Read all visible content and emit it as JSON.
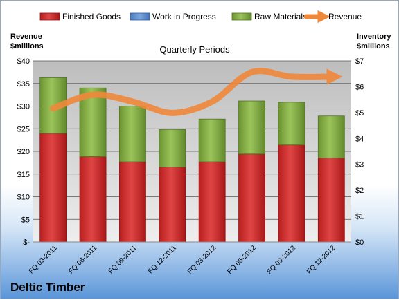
{
  "chart_data": {
    "type": "bar",
    "title": "Quarterly Periods",
    "categories": [
      "FQ 03-2011",
      "FQ 06-2011",
      "FQ 09-2011",
      "FQ 12-2011",
      "FQ 03-2012",
      "FQ 06-2012",
      "FQ 09-2012",
      "FQ 12-2012"
    ],
    "series": [
      {
        "name": "Finished Goods",
        "axis": "inventory",
        "kind": "stacked-bar",
        "color": "#d03030",
        "values": [
          4.2,
          3.3,
          3.1,
          2.9,
          3.1,
          3.4,
          3.75,
          3.25
        ]
      },
      {
        "name": "Work in Progress",
        "axis": "inventory",
        "kind": "stacked-bar",
        "color": "#5b8fd4",
        "values": [
          0,
          0,
          0,
          0,
          0,
          0,
          0,
          0
        ]
      },
      {
        "name": "Raw Materials",
        "axis": "inventory",
        "kind": "stacked-bar",
        "color": "#8ab34a",
        "values": [
          2.15,
          2.65,
          2.15,
          1.45,
          1.65,
          2.05,
          1.65,
          1.62
        ]
      },
      {
        "name": "Revenue",
        "axis": "revenue",
        "kind": "line",
        "color": "#f0883a",
        "values": [
          29.5,
          32.5,
          31,
          28.5,
          31,
          37.5,
          36.5,
          36.5
        ]
      }
    ],
    "y_left": {
      "label": "Revenue\n$millions",
      "ylim": [
        0,
        40
      ],
      "ticks": [
        "$-",
        "$5",
        "$10",
        "$15",
        "$20",
        "$25",
        "$30",
        "$35",
        "$40"
      ]
    },
    "y_right": {
      "label": "Inventory\n$millions",
      "ylim": [
        0,
        7
      ],
      "ticks": [
        "$0",
        "$1",
        "$2",
        "$3",
        "$4",
        "$5",
        "$6",
        "$7"
      ]
    },
    "grid": true,
    "legend": "top"
  },
  "brand": "Deltic Timber"
}
